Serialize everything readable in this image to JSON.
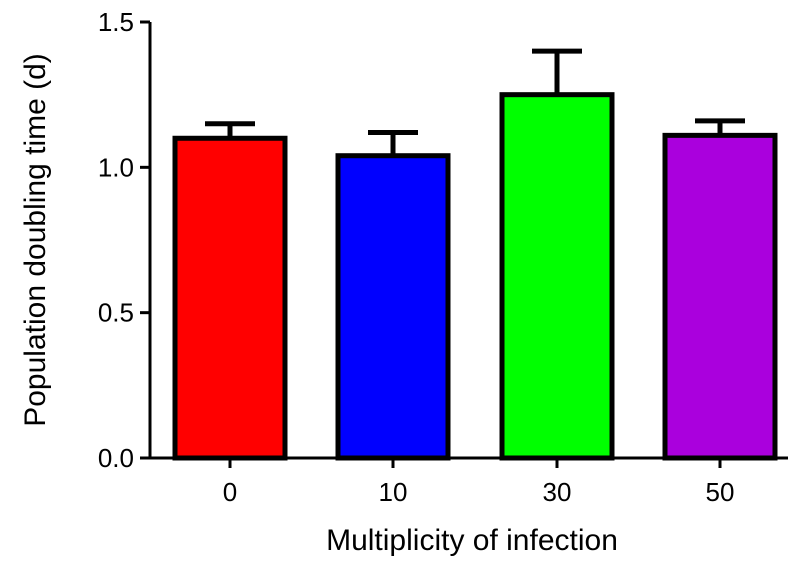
{
  "chart_data": {
    "type": "bar",
    "categories": [
      "0",
      "10",
      "30",
      "50"
    ],
    "values": [
      1.1,
      1.04,
      1.25,
      1.11
    ],
    "error_upper": [
      0.05,
      0.08,
      0.15,
      0.05
    ],
    "colors": [
      "#ff0000",
      "#0000ff",
      "#00ff00",
      "#aa00dd"
    ],
    "xlabel": "Multiplicity of infection",
    "ylabel": "Population doubling time (d)",
    "ylim": [
      0,
      1.5
    ],
    "yticks": [
      0.0,
      0.5,
      1.0,
      1.5
    ],
    "ytick_labels": [
      "0.0",
      "0.5",
      "1.0",
      "1.5"
    ],
    "grid": false,
    "legend": "none"
  }
}
